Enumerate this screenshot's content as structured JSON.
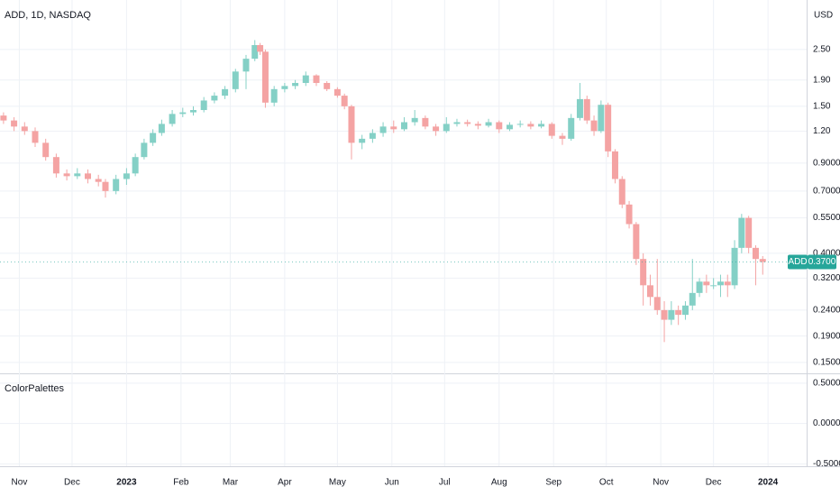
{
  "chart_data": [
    {
      "type": "candlestick",
      "title": "ADD, 1D, NASDAQ",
      "currency": "USD",
      "up_color": "#84d0c6",
      "down_color": "#f4a3a3",
      "log_scale": true,
      "grid": true,
      "xlim": [
        -72,
        387
      ],
      "xticks": [
        {
          "value": -61,
          "label": "Nov"
        },
        {
          "value": -31,
          "label": "Dec"
        },
        {
          "value": 0,
          "label": "2023"
        },
        {
          "value": 31,
          "label": "Feb"
        },
        {
          "value": 59,
          "label": "Mar"
        },
        {
          "value": 90,
          "label": "Apr"
        },
        {
          "value": 120,
          "label": "May"
        },
        {
          "value": 151,
          "label": "Jun"
        },
        {
          "value": 181,
          "label": "Jul"
        },
        {
          "value": 212,
          "label": "Aug"
        },
        {
          "value": 243,
          "label": "Sep"
        },
        {
          "value": 273,
          "label": "Oct"
        },
        {
          "value": 304,
          "label": "Nov"
        },
        {
          "value": 334,
          "label": "Dec"
        },
        {
          "value": 365,
          "label": "2024"
        }
      ],
      "ylim": [
        0.137,
        3.9
      ],
      "yticks": [
        {
          "value": 2.5,
          "label": "2.50"
        },
        {
          "value": 1.9,
          "label": "1.90"
        },
        {
          "value": 1.5,
          "label": "1.50"
        },
        {
          "value": 1.2,
          "label": "1.20"
        },
        {
          "value": 0.9,
          "label": "0.9000"
        },
        {
          "value": 0.7,
          "label": "0.7000"
        },
        {
          "value": 0.55,
          "label": "0.5500"
        },
        {
          "value": 0.4,
          "label": "0.4000"
        },
        {
          "value": 0.32,
          "label": "0.3200"
        },
        {
          "value": 0.24,
          "label": "0.2400"
        },
        {
          "value": 0.19,
          "label": "0.1900"
        },
        {
          "value": 0.15,
          "label": "0.1500"
        }
      ],
      "last_price": {
        "name": "ADD",
        "value": 0.37,
        "label": "0.3700",
        "color": "#26a69a"
      },
      "candles": [
        [
          -70,
          1.38,
          1.42,
          1.28,
          1.32
        ],
        [
          -64,
          1.32,
          1.36,
          1.2,
          1.25
        ],
        [
          -58,
          1.25,
          1.3,
          1.16,
          1.2
        ],
        [
          -52,
          1.2,
          1.24,
          1.04,
          1.08
        ],
        [
          -46,
          1.08,
          1.12,
          0.92,
          0.95
        ],
        [
          -40,
          0.95,
          0.98,
          0.79,
          0.82
        ],
        [
          -34,
          0.82,
          0.85,
          0.77,
          0.8
        ],
        [
          -28,
          0.8,
          0.86,
          0.78,
          0.82
        ],
        [
          -22,
          0.82,
          0.85,
          0.75,
          0.78
        ],
        [
          -16,
          0.78,
          0.81,
          0.73,
          0.76
        ],
        [
          -12,
          0.76,
          0.78,
          0.66,
          0.7
        ],
        [
          -6,
          0.7,
          0.81,
          0.68,
          0.78
        ],
        [
          0,
          0.78,
          0.86,
          0.74,
          0.82
        ],
        [
          5,
          0.82,
          0.98,
          0.8,
          0.95
        ],
        [
          10,
          0.95,
          1.12,
          0.93,
          1.08
        ],
        [
          15,
          1.08,
          1.22,
          1.05,
          1.18
        ],
        [
          20,
          1.18,
          1.33,
          1.15,
          1.28
        ],
        [
          26,
          1.28,
          1.45,
          1.25,
          1.4
        ],
        [
          32,
          1.4,
          1.48,
          1.36,
          1.42
        ],
        [
          38,
          1.42,
          1.5,
          1.38,
          1.45
        ],
        [
          44,
          1.45,
          1.63,
          1.42,
          1.58
        ],
        [
          50,
          1.58,
          1.7,
          1.54,
          1.65
        ],
        [
          56,
          1.65,
          1.8,
          1.6,
          1.75
        ],
        [
          62,
          1.75,
          2.1,
          1.7,
          2.05
        ],
        [
          68,
          2.05,
          2.38,
          1.75,
          2.3
        ],
        [
          73,
          2.3,
          2.72,
          2.25,
          2.6
        ],
        [
          76,
          2.6,
          2.65,
          2.38,
          2.45
        ],
        [
          79,
          2.45,
          2.5,
          1.48,
          1.55
        ],
        [
          84,
          1.55,
          1.8,
          1.5,
          1.75
        ],
        [
          90,
          1.75,
          1.85,
          1.7,
          1.8
        ],
        [
          96,
          1.8,
          1.9,
          1.75,
          1.85
        ],
        [
          102,
          1.85,
          2.05,
          1.8,
          1.98
        ],
        [
          108,
          1.98,
          2.0,
          1.8,
          1.85
        ],
        [
          114,
          1.85,
          1.88,
          1.72,
          1.75
        ],
        [
          120,
          1.75,
          1.78,
          1.62,
          1.65
        ],
        [
          124,
          1.65,
          1.68,
          1.46,
          1.5
        ],
        [
          128,
          1.5,
          1.52,
          0.93,
          1.08
        ],
        [
          134,
          1.08,
          1.16,
          1.02,
          1.12
        ],
        [
          140,
          1.12,
          1.22,
          1.08,
          1.18
        ],
        [
          146,
          1.18,
          1.3,
          1.14,
          1.25
        ],
        [
          152,
          1.25,
          1.32,
          1.18,
          1.22
        ],
        [
          158,
          1.22,
          1.36,
          1.2,
          1.3
        ],
        [
          164,
          1.3,
          1.45,
          1.26,
          1.35
        ],
        [
          170,
          1.35,
          1.38,
          1.22,
          1.25
        ],
        [
          176,
          1.25,
          1.28,
          1.15,
          1.2
        ],
        [
          182,
          1.2,
          1.36,
          1.18,
          1.28
        ],
        [
          188,
          1.28,
          1.34,
          1.25,
          1.3
        ],
        [
          194,
          1.3,
          1.33,
          1.25,
          1.28
        ],
        [
          200,
          1.28,
          1.31,
          1.22,
          1.26
        ],
        [
          206,
          1.26,
          1.34,
          1.24,
          1.3
        ],
        [
          212,
          1.3,
          1.32,
          1.18,
          1.22
        ],
        [
          218,
          1.22,
          1.3,
          1.2,
          1.27
        ],
        [
          224,
          1.27,
          1.32,
          1.24,
          1.28
        ],
        [
          230,
          1.28,
          1.31,
          1.22,
          1.25
        ],
        [
          236,
          1.25,
          1.32,
          1.23,
          1.28
        ],
        [
          242,
          1.28,
          1.3,
          1.12,
          1.15
        ],
        [
          248,
          1.15,
          1.18,
          1.06,
          1.12
        ],
        [
          253,
          1.12,
          1.4,
          1.1,
          1.35
        ],
        [
          258,
          1.35,
          1.85,
          1.32,
          1.6
        ],
        [
          262,
          1.6,
          1.65,
          1.28,
          1.32
        ],
        [
          266,
          1.32,
          1.38,
          1.15,
          1.2
        ],
        [
          270,
          1.2,
          1.58,
          1.18,
          1.52
        ],
        [
          274,
          1.52,
          1.55,
          0.95,
          1.0
        ],
        [
          278,
          1.0,
          1.02,
          0.75,
          0.78
        ],
        [
          282,
          0.78,
          0.8,
          0.6,
          0.62
        ],
        [
          286,
          0.62,
          0.64,
          0.5,
          0.52
        ],
        [
          290,
          0.52,
          0.53,
          0.36,
          0.38
        ],
        [
          294,
          0.38,
          0.4,
          0.25,
          0.3
        ],
        [
          298,
          0.3,
          0.33,
          0.25,
          0.27
        ],
        [
          302,
          0.27,
          0.38,
          0.23,
          0.24
        ],
        [
          306,
          0.24,
          0.26,
          0.18,
          0.22
        ],
        [
          310,
          0.22,
          0.26,
          0.21,
          0.24
        ],
        [
          314,
          0.24,
          0.25,
          0.21,
          0.23
        ],
        [
          318,
          0.23,
          0.26,
          0.22,
          0.25
        ],
        [
          322,
          0.25,
          0.38,
          0.24,
          0.28
        ],
        [
          326,
          0.28,
          0.32,
          0.27,
          0.31
        ],
        [
          330,
          0.31,
          0.33,
          0.28,
          0.3
        ],
        [
          334,
          0.3,
          0.32,
          0.29,
          0.3
        ],
        [
          338,
          0.3,
          0.33,
          0.27,
          0.31
        ],
        [
          342,
          0.31,
          0.33,
          0.27,
          0.3
        ],
        [
          346,
          0.3,
          0.45,
          0.29,
          0.42
        ],
        [
          350,
          0.42,
          0.57,
          0.4,
          0.55
        ],
        [
          354,
          0.55,
          0.56,
          0.4,
          0.42
        ],
        [
          358,
          0.42,
          0.43,
          0.3,
          0.38
        ],
        [
          362,
          0.38,
          0.39,
          0.33,
          0.37
        ]
      ]
    },
    {
      "type": "indicator",
      "title": "ColorPalettes",
      "grid": true,
      "ylim": [
        -0.53,
        0.61
      ],
      "yticks": [
        {
          "value": 0.5,
          "label": "0.5000"
        },
        {
          "value": 0,
          "label": "0.0000"
        },
        {
          "value": -0.5,
          "label": "-0.5000"
        }
      ]
    }
  ]
}
